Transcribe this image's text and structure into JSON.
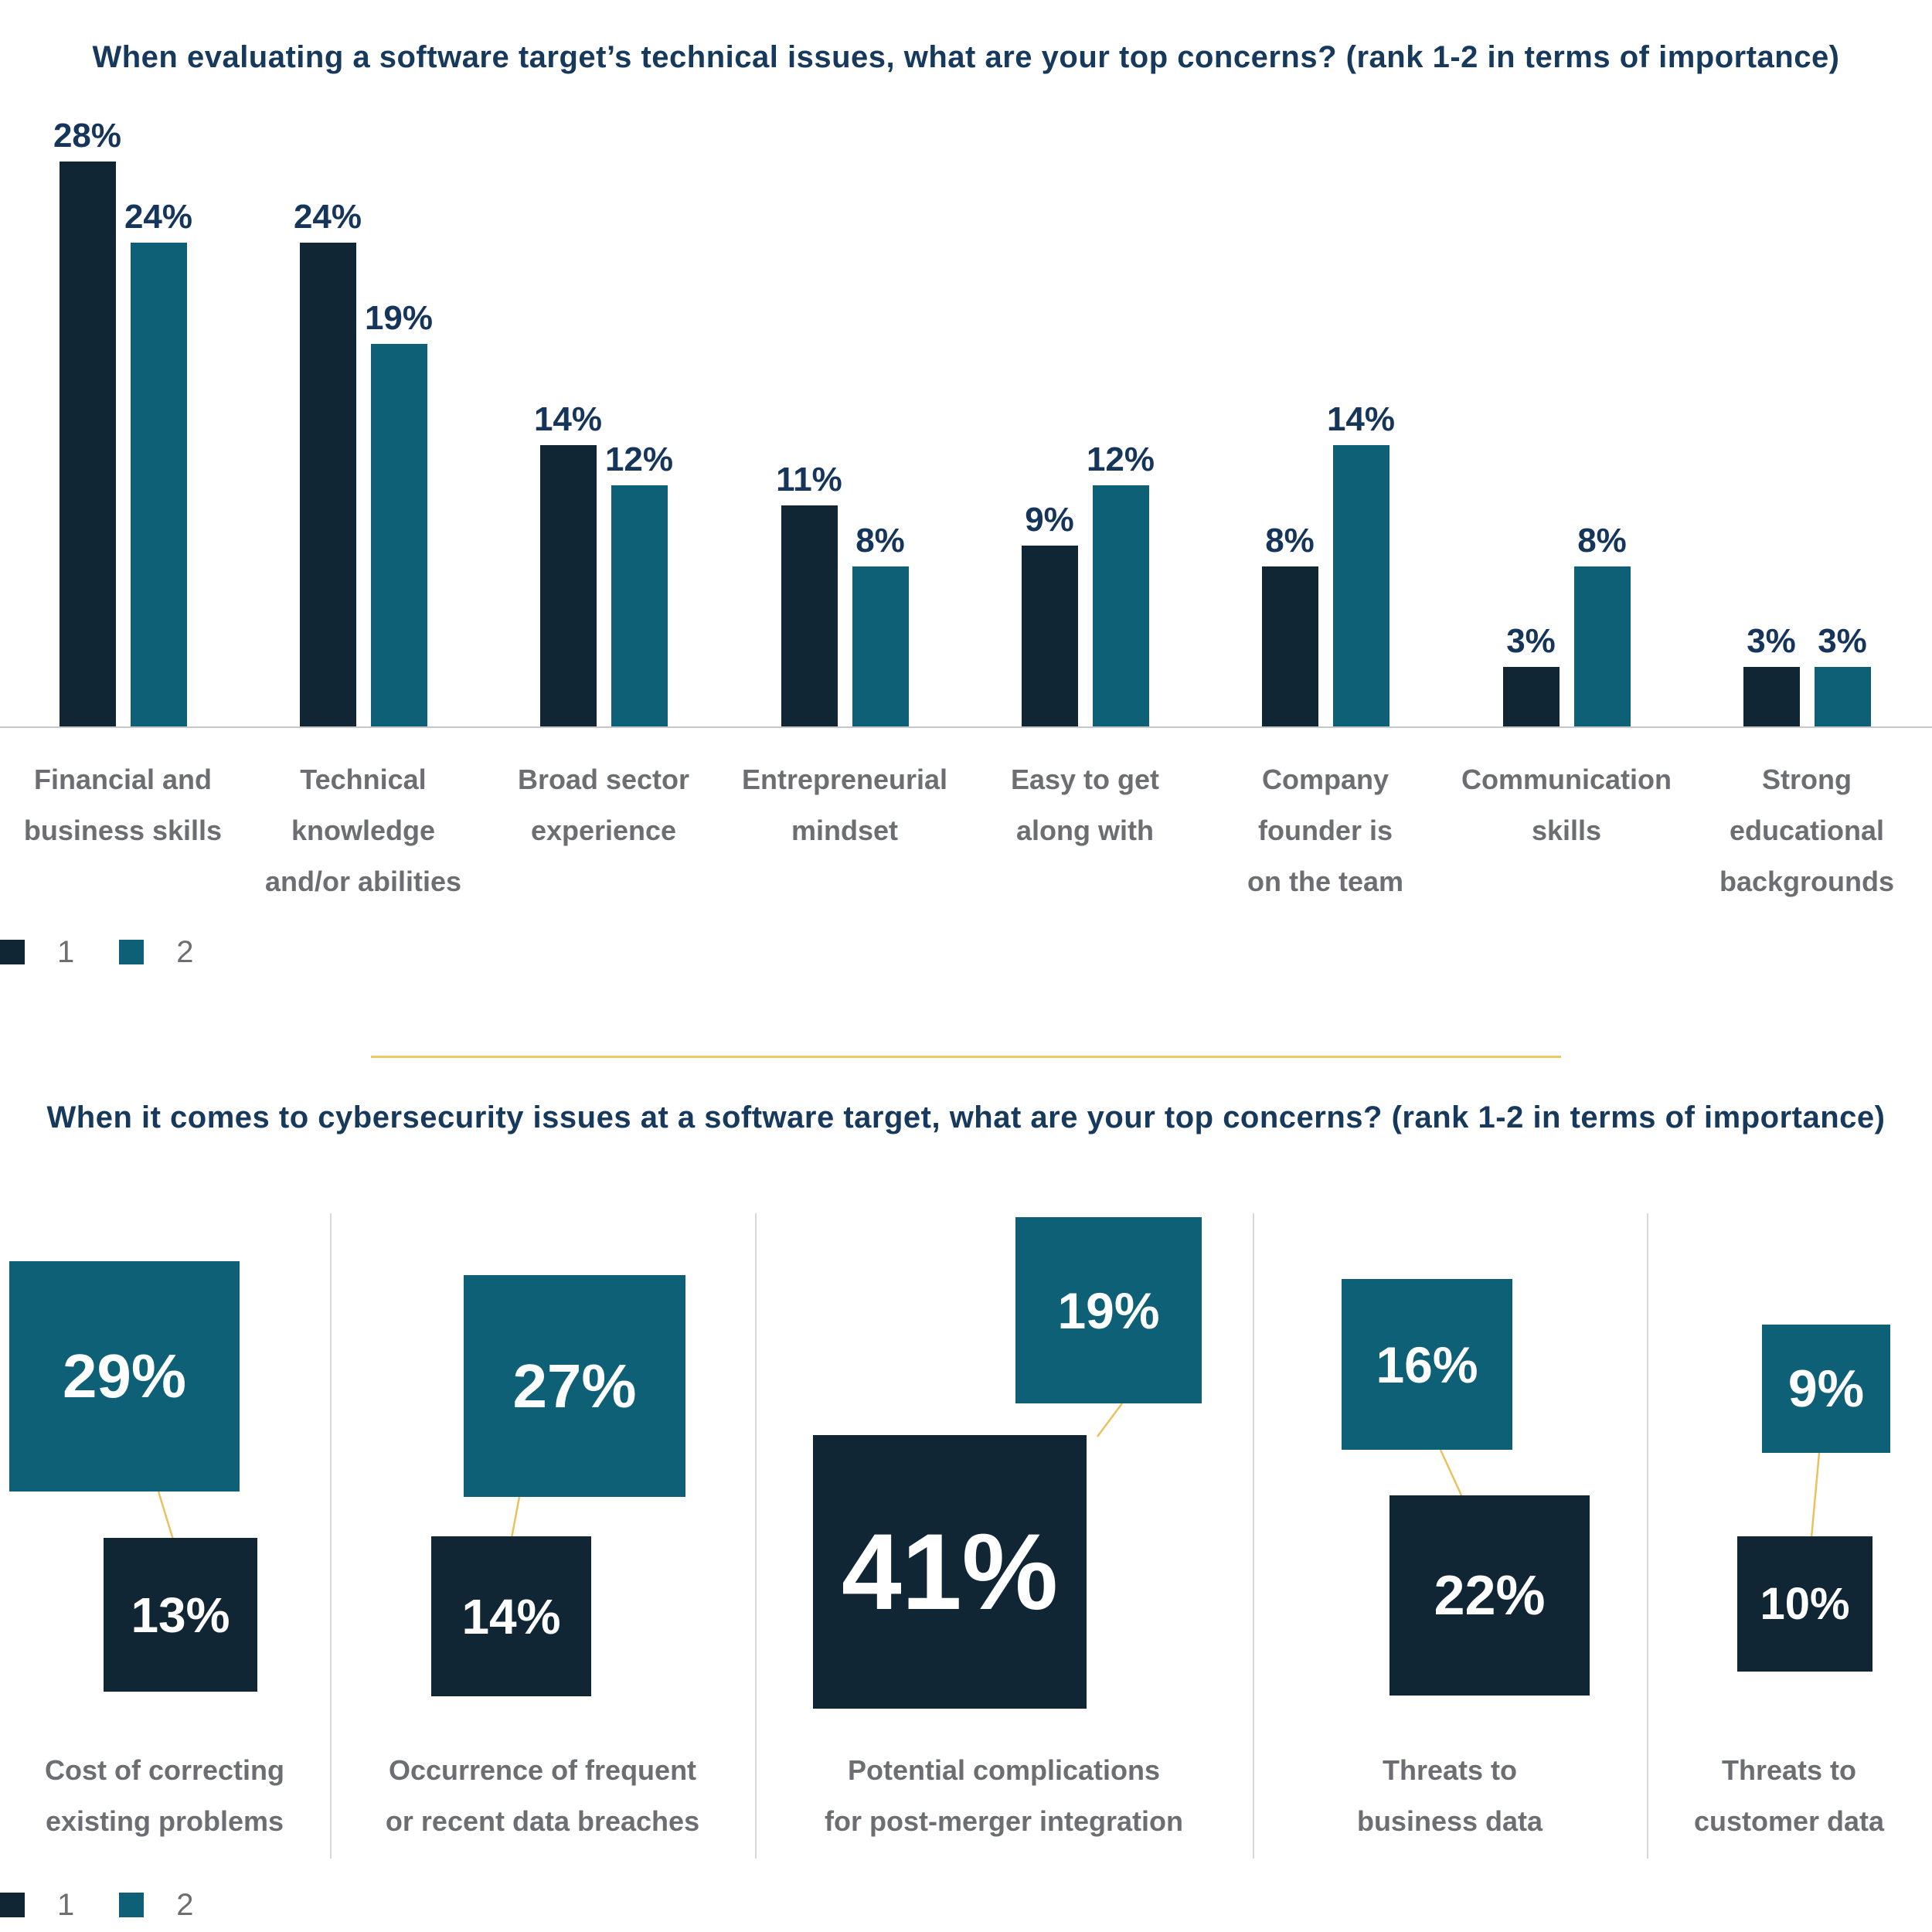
{
  "colors": {
    "rank1_dark_navy": "#102634",
    "rank2_teal": "#0d6075",
    "connector_gold": "#e9c25f",
    "section_divider_gold": "#eec863",
    "axis_gray": "#c6c7c8",
    "group_divider_gray": "#d9d9d9",
    "title_navy": "#173a5c",
    "label_gray": "#6d6e71",
    "square_value_white": "#ffffff"
  },
  "chart1": {
    "title": "When evaluating a software target’s technical issues, what are your top concerns? (rank 1-2 in terms of importance)",
    "legend": [
      "1",
      "2"
    ],
    "chart_data": {
      "type": "bar",
      "unit": "%",
      "grid": false,
      "legend_position": "bottom-left",
      "ylim": [
        0,
        30
      ],
      "value_labels": "above bars, e.g. 28%",
      "categories": [
        "Financial and business skills",
        "Technical knowledge and/or abilities",
        "Broad sector experience",
        "Entrepreneurial mindset",
        "Easy to get along with",
        "Company founder is on the team",
        "Communication skills",
        "Strong educational backgrounds"
      ],
      "category_lines": [
        [
          "Financial and",
          "business skills"
        ],
        [
          "Technical",
          "knowledge",
          "and/or abilities"
        ],
        [
          "Broad sector",
          "experience"
        ],
        [
          "Entrepreneurial",
          "mindset"
        ],
        [
          "Easy to get",
          "along with"
        ],
        [
          "Company",
          "founder is",
          "on the team"
        ],
        [
          "Communication",
          "skills"
        ],
        [
          "Strong",
          "educational",
          "backgrounds"
        ]
      ],
      "series": [
        {
          "name": "1",
          "color": "#102634",
          "values": [
            28,
            24,
            14,
            11,
            9,
            8,
            3,
            3
          ]
        },
        {
          "name": "2",
          "color": "#0d6075",
          "values": [
            24,
            19,
            12,
            8,
            12,
            14,
            8,
            3
          ]
        }
      ]
    }
  },
  "chart2": {
    "title": "When it comes to cybersecurity issues at a software target, what are your top concerns? (rank 1-2 in terms of importance)",
    "legend": [
      "1",
      "2"
    ],
    "chart_data": {
      "type": "proportional_squares",
      "unit": "%",
      "legend_position": "bottom-left",
      "note": "square area proportional to value; rank-2 teal square above, rank-1 dark square below, joined by thin gold connector line; groups separated by light gray vertical dividers",
      "categories": [
        "Cost of correcting existing problems",
        "Occurrence of frequent or recent data breaches",
        "Potential complications for post-merger integration",
        "Threats to business data",
        "Threats to customer data"
      ],
      "category_lines": [
        [
          "Cost of correcting",
          "existing problems"
        ],
        [
          "Occurrence of frequent",
          "or recent data breaches"
        ],
        [
          "Potential complications",
          "for post-merger integration"
        ],
        [
          "Threats to",
          "business data"
        ],
        [
          "Threats to",
          "customer data"
        ]
      ],
      "series": [
        {
          "name": "1",
          "color": "#102634",
          "values": [
            13,
            14,
            41,
            22,
            10
          ]
        },
        {
          "name": "2",
          "color": "#0d6075",
          "values": [
            29,
            27,
            19,
            16,
            9
          ]
        }
      ]
    }
  }
}
